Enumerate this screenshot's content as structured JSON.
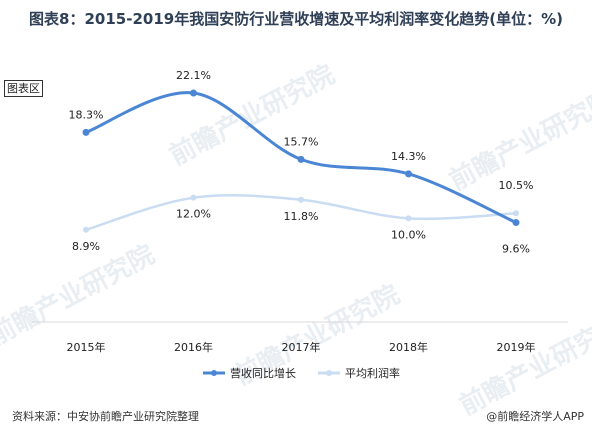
{
  "title": "图表8：2015-2019年我国安防行业营收增速及平均利润率变化趋势(单位：%)",
  "area_tag": "图表区",
  "source": "资料来源：中安协前瞻产业研究院整理",
  "brand": "@前瞻经济学人APP",
  "watermark": "前瞻产业研究院",
  "chart_data": {
    "type": "line",
    "categories": [
      "2015年",
      "2016年",
      "2017年",
      "2018年",
      "2019年"
    ],
    "series": [
      {
        "name": "营收同比增长",
        "values": [
          18.3,
          22.1,
          15.7,
          14.3,
          9.6
        ],
        "labels": [
          "18.3%",
          "22.1%",
          "15.7%",
          "14.3%",
          "9.6%"
        ],
        "color": "#4a86d4"
      },
      {
        "name": "平均利润率",
        "values": [
          8.9,
          12.0,
          11.8,
          10.0,
          10.5
        ],
        "labels": [
          "8.9%",
          "12.0%",
          "11.8%",
          "10.0%",
          "10.5%"
        ],
        "color": "#c9dcf2"
      }
    ],
    "ylim": [
      0,
      25
    ],
    "smooth": true,
    "grid": false,
    "legend": "bottom"
  }
}
